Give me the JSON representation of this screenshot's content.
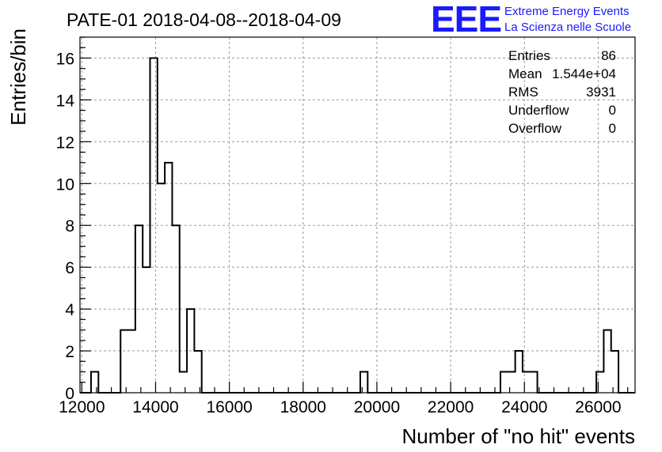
{
  "chart_data": {
    "type": "bar",
    "title": "PATE-01 2018-04-08--2018-04-09",
    "xlabel": "Number of \"no hit\" events",
    "ylabel": "Entries/bin",
    "xlim": [
      11950,
      27000
    ],
    "ylim": [
      0,
      17
    ],
    "bin_width": 200,
    "x_ticks": [
      12000,
      14000,
      16000,
      18000,
      20000,
      22000,
      24000,
      26000
    ],
    "x_tick_labels": [
      "12000",
      "14000",
      "16000",
      "18000",
      "20000",
      "22000",
      "24000",
      "26000"
    ],
    "y_ticks": [
      0,
      2,
      4,
      6,
      8,
      10,
      12,
      14,
      16
    ],
    "y_tick_labels": [
      "0",
      "2",
      "4",
      "6",
      "8",
      "10",
      "12",
      "14",
      "16"
    ],
    "grid": true,
    "bins": [
      {
        "x": 12350,
        "value": 1
      },
      {
        "x": 13150,
        "value": 3
      },
      {
        "x": 13350,
        "value": 3
      },
      {
        "x": 13550,
        "value": 8
      },
      {
        "x": 13750,
        "value": 6
      },
      {
        "x": 13950,
        "value": 16
      },
      {
        "x": 14150,
        "value": 10
      },
      {
        "x": 14350,
        "value": 11
      },
      {
        "x": 14550,
        "value": 8
      },
      {
        "x": 14750,
        "value": 1
      },
      {
        "x": 14950,
        "value": 4
      },
      {
        "x": 15150,
        "value": 2
      },
      {
        "x": 19650,
        "value": 1
      },
      {
        "x": 23450,
        "value": 1
      },
      {
        "x": 23650,
        "value": 1
      },
      {
        "x": 23850,
        "value": 2
      },
      {
        "x": 24050,
        "value": 1
      },
      {
        "x": 24250,
        "value": 1
      },
      {
        "x": 26050,
        "value": 1
      },
      {
        "x": 26250,
        "value": 3
      },
      {
        "x": 26450,
        "value": 2
      }
    ],
    "stats": [
      {
        "label": "Entries",
        "value": "86"
      },
      {
        "label": "Mean",
        "value": "1.544e+04"
      },
      {
        "label": "RMS",
        "value": "3931"
      },
      {
        "label": "Underflow",
        "value": "0"
      },
      {
        "label": "Overflow",
        "value": "0"
      }
    ]
  },
  "logo": {
    "mark": "EEE",
    "line1": "Extreme Energy Events",
    "line2": "La Scienza nelle Scuole",
    "color": "#1a1aff"
  }
}
